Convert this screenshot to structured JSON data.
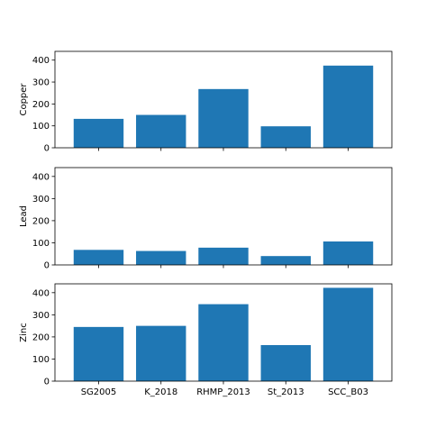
{
  "chart_data": [
    {
      "type": "bar",
      "ylabel": "Copper",
      "categories": [
        "SG2005",
        "K_2018",
        "RHMP_2013",
        "St_2013",
        "SCC_B03"
      ],
      "values": [
        132,
        150,
        268,
        98,
        375
      ],
      "ylim": [
        0,
        440
      ],
      "yticks": [
        0,
        100,
        200,
        300,
        400
      ],
      "show_xticklabels": false,
      "color": "#1f77b4",
      "grid": false
    },
    {
      "type": "bar",
      "ylabel": "Lead",
      "categories": [
        "SG2005",
        "K_2018",
        "RHMP_2013",
        "St_2013",
        "SCC_B03"
      ],
      "values": [
        68,
        63,
        78,
        40,
        106
      ],
      "ylim": [
        0,
        440
      ],
      "yticks": [
        0,
        100,
        200,
        300,
        400
      ],
      "show_xticklabels": false,
      "color": "#1f77b4",
      "grid": false
    },
    {
      "type": "bar",
      "ylabel": "Zinc",
      "categories": [
        "SG2005",
        "K_2018",
        "RHMP_2013",
        "St_2013",
        "SCC_B03"
      ],
      "values": [
        245,
        250,
        348,
        163,
        422
      ],
      "ylim": [
        0,
        440
      ],
      "yticks": [
        0,
        100,
        200,
        300,
        400
      ],
      "show_xticklabels": true,
      "color": "#1f77b4",
      "grid": false
    }
  ]
}
